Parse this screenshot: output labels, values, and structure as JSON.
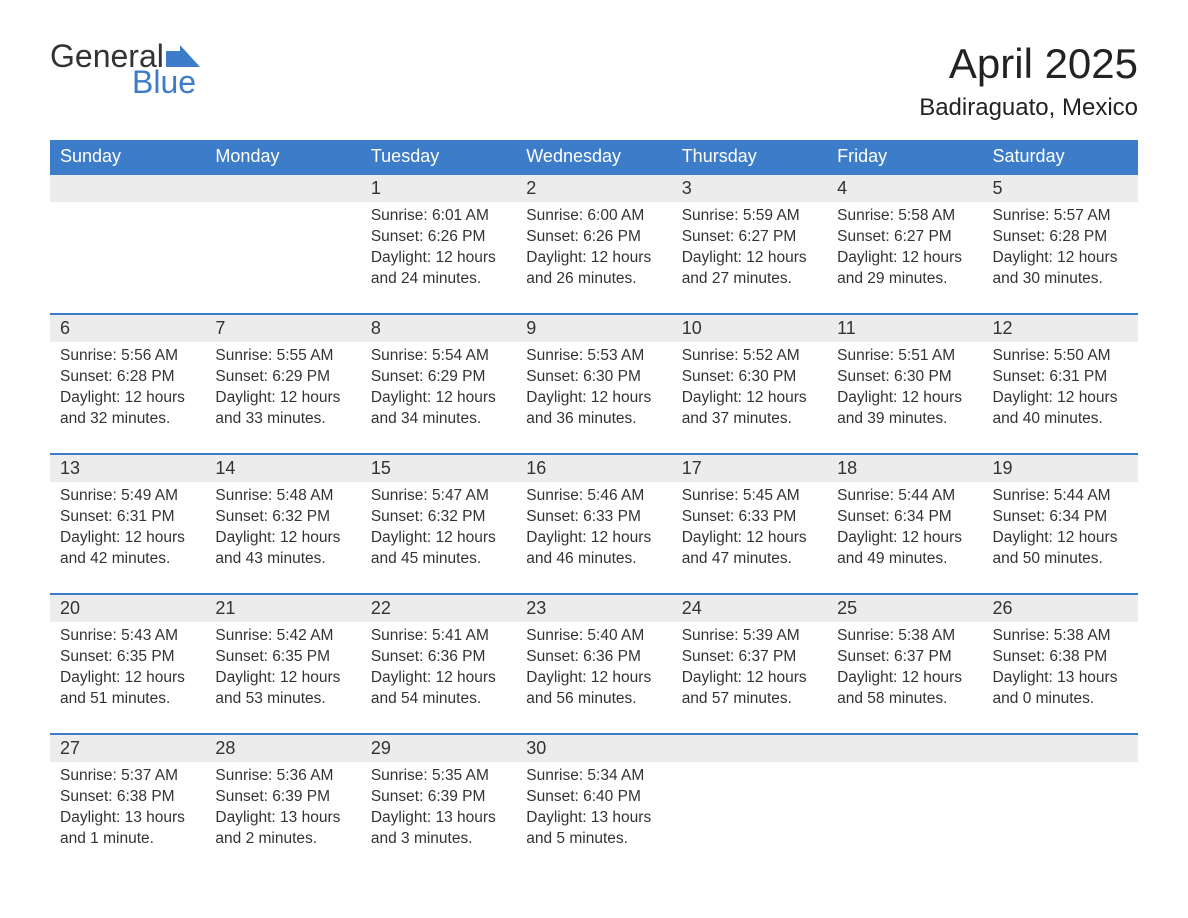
{
  "logo": {
    "word1": "General",
    "word2": "Blue",
    "accent_color": "#3d7cc9"
  },
  "title": "April 2025",
  "location": "Badiraguato, Mexico",
  "colors": {
    "header_bg": "#3d7cc9",
    "header_text": "#ffffff",
    "daynum_bg": "#ececec",
    "row_divider": "#3d7cc9",
    "text": "#333333",
    "page_bg": "#ffffff"
  },
  "fonts": {
    "title_size_pt": 32,
    "location_size_pt": 18,
    "header_size_pt": 14,
    "cell_size_pt": 12
  },
  "weekdays": [
    "Sunday",
    "Monday",
    "Tuesday",
    "Wednesday",
    "Thursday",
    "Friday",
    "Saturday"
  ],
  "weeks": [
    [
      null,
      null,
      {
        "n": "1",
        "sunrise": "Sunrise: 6:01 AM",
        "sunset": "Sunset: 6:26 PM",
        "daylight": "Daylight: 12 hours and 24 minutes."
      },
      {
        "n": "2",
        "sunrise": "Sunrise: 6:00 AM",
        "sunset": "Sunset: 6:26 PM",
        "daylight": "Daylight: 12 hours and 26 minutes."
      },
      {
        "n": "3",
        "sunrise": "Sunrise: 5:59 AM",
        "sunset": "Sunset: 6:27 PM",
        "daylight": "Daylight: 12 hours and 27 minutes."
      },
      {
        "n": "4",
        "sunrise": "Sunrise: 5:58 AM",
        "sunset": "Sunset: 6:27 PM",
        "daylight": "Daylight: 12 hours and 29 minutes."
      },
      {
        "n": "5",
        "sunrise": "Sunrise: 5:57 AM",
        "sunset": "Sunset: 6:28 PM",
        "daylight": "Daylight: 12 hours and 30 minutes."
      }
    ],
    [
      {
        "n": "6",
        "sunrise": "Sunrise: 5:56 AM",
        "sunset": "Sunset: 6:28 PM",
        "daylight": "Daylight: 12 hours and 32 minutes."
      },
      {
        "n": "7",
        "sunrise": "Sunrise: 5:55 AM",
        "sunset": "Sunset: 6:29 PM",
        "daylight": "Daylight: 12 hours and 33 minutes."
      },
      {
        "n": "8",
        "sunrise": "Sunrise: 5:54 AM",
        "sunset": "Sunset: 6:29 PM",
        "daylight": "Daylight: 12 hours and 34 minutes."
      },
      {
        "n": "9",
        "sunrise": "Sunrise: 5:53 AM",
        "sunset": "Sunset: 6:30 PM",
        "daylight": "Daylight: 12 hours and 36 minutes."
      },
      {
        "n": "10",
        "sunrise": "Sunrise: 5:52 AM",
        "sunset": "Sunset: 6:30 PM",
        "daylight": "Daylight: 12 hours and 37 minutes."
      },
      {
        "n": "11",
        "sunrise": "Sunrise: 5:51 AM",
        "sunset": "Sunset: 6:30 PM",
        "daylight": "Daylight: 12 hours and 39 minutes."
      },
      {
        "n": "12",
        "sunrise": "Sunrise: 5:50 AM",
        "sunset": "Sunset: 6:31 PM",
        "daylight": "Daylight: 12 hours and 40 minutes."
      }
    ],
    [
      {
        "n": "13",
        "sunrise": "Sunrise: 5:49 AM",
        "sunset": "Sunset: 6:31 PM",
        "daylight": "Daylight: 12 hours and 42 minutes."
      },
      {
        "n": "14",
        "sunrise": "Sunrise: 5:48 AM",
        "sunset": "Sunset: 6:32 PM",
        "daylight": "Daylight: 12 hours and 43 minutes."
      },
      {
        "n": "15",
        "sunrise": "Sunrise: 5:47 AM",
        "sunset": "Sunset: 6:32 PM",
        "daylight": "Daylight: 12 hours and 45 minutes."
      },
      {
        "n": "16",
        "sunrise": "Sunrise: 5:46 AM",
        "sunset": "Sunset: 6:33 PM",
        "daylight": "Daylight: 12 hours and 46 minutes."
      },
      {
        "n": "17",
        "sunrise": "Sunrise: 5:45 AM",
        "sunset": "Sunset: 6:33 PM",
        "daylight": "Daylight: 12 hours and 47 minutes."
      },
      {
        "n": "18",
        "sunrise": "Sunrise: 5:44 AM",
        "sunset": "Sunset: 6:34 PM",
        "daylight": "Daylight: 12 hours and 49 minutes."
      },
      {
        "n": "19",
        "sunrise": "Sunrise: 5:44 AM",
        "sunset": "Sunset: 6:34 PM",
        "daylight": "Daylight: 12 hours and 50 minutes."
      }
    ],
    [
      {
        "n": "20",
        "sunrise": "Sunrise: 5:43 AM",
        "sunset": "Sunset: 6:35 PM",
        "daylight": "Daylight: 12 hours and 51 minutes."
      },
      {
        "n": "21",
        "sunrise": "Sunrise: 5:42 AM",
        "sunset": "Sunset: 6:35 PM",
        "daylight": "Daylight: 12 hours and 53 minutes."
      },
      {
        "n": "22",
        "sunrise": "Sunrise: 5:41 AM",
        "sunset": "Sunset: 6:36 PM",
        "daylight": "Daylight: 12 hours and 54 minutes."
      },
      {
        "n": "23",
        "sunrise": "Sunrise: 5:40 AM",
        "sunset": "Sunset: 6:36 PM",
        "daylight": "Daylight: 12 hours and 56 minutes."
      },
      {
        "n": "24",
        "sunrise": "Sunrise: 5:39 AM",
        "sunset": "Sunset: 6:37 PM",
        "daylight": "Daylight: 12 hours and 57 minutes."
      },
      {
        "n": "25",
        "sunrise": "Sunrise: 5:38 AM",
        "sunset": "Sunset: 6:37 PM",
        "daylight": "Daylight: 12 hours and 58 minutes."
      },
      {
        "n": "26",
        "sunrise": "Sunrise: 5:38 AM",
        "sunset": "Sunset: 6:38 PM",
        "daylight": "Daylight: 13 hours and 0 minutes."
      }
    ],
    [
      {
        "n": "27",
        "sunrise": "Sunrise: 5:37 AM",
        "sunset": "Sunset: 6:38 PM",
        "daylight": "Daylight: 13 hours and 1 minute."
      },
      {
        "n": "28",
        "sunrise": "Sunrise: 5:36 AM",
        "sunset": "Sunset: 6:39 PM",
        "daylight": "Daylight: 13 hours and 2 minutes."
      },
      {
        "n": "29",
        "sunrise": "Sunrise: 5:35 AM",
        "sunset": "Sunset: 6:39 PM",
        "daylight": "Daylight: 13 hours and 3 minutes."
      },
      {
        "n": "30",
        "sunrise": "Sunrise: 5:34 AM",
        "sunset": "Sunset: 6:40 PM",
        "daylight": "Daylight: 13 hours and 5 minutes."
      },
      null,
      null,
      null
    ]
  ]
}
